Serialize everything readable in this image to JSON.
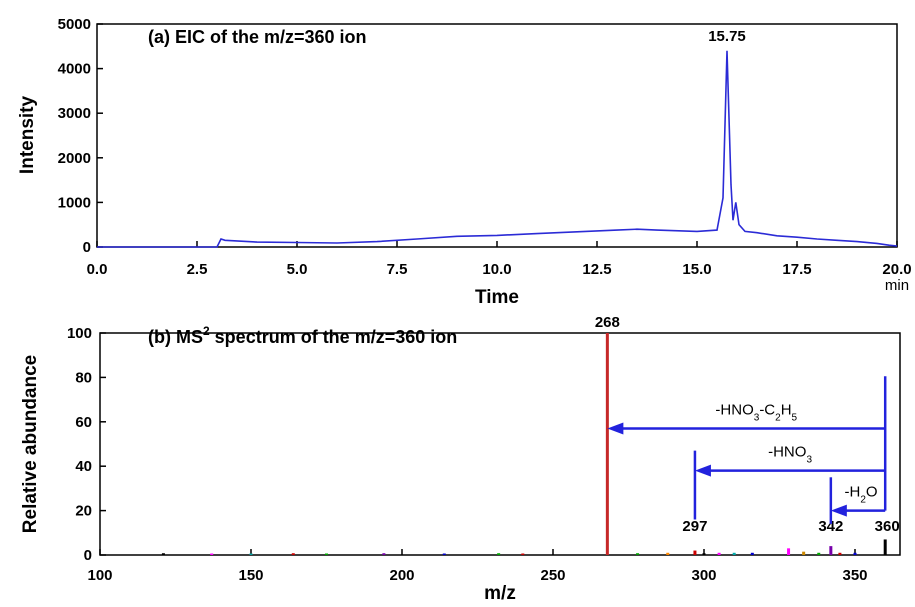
{
  "chart_data": [
    {
      "panel": "a",
      "type": "line",
      "title": "(a) EIC of the m/z=360 ion",
      "xlabel": "Time",
      "x_unit": "min",
      "ylabel": "Intensity",
      "xlim": [
        0,
        20
      ],
      "ylim": [
        0,
        5000
      ],
      "x_ticks": [
        "0.0",
        "2.5",
        "5.0",
        "7.5",
        "10.0",
        "12.5",
        "15.0",
        "17.5",
        "20.0"
      ],
      "y_ticks": [
        "0",
        "1000",
        "2000",
        "3000",
        "4000",
        "5000"
      ],
      "series_color": "#2b2bd6",
      "peak_label": "15.75",
      "x": [
        0.0,
        3.0,
        3.1,
        3.2,
        4.0,
        5.0,
        6.0,
        7.0,
        8.0,
        9.0,
        10.0,
        11.0,
        12.0,
        13.0,
        13.5,
        14.0,
        15.0,
        15.5,
        15.65,
        15.75,
        15.85,
        15.9,
        15.97,
        16.05,
        16.2,
        16.5,
        17.0,
        17.5,
        18.0,
        18.5,
        19.0,
        19.5,
        19.8,
        20.0
      ],
      "y": [
        0,
        0,
        180,
        150,
        110,
        100,
        90,
        120,
        180,
        240,
        260,
        300,
        340,
        380,
        400,
        380,
        350,
        380,
        1100,
        4400,
        1400,
        600,
        1000,
        500,
        350,
        320,
        250,
        220,
        180,
        150,
        120,
        80,
        40,
        20
      ]
    },
    {
      "panel": "b",
      "type": "bar",
      "title_main": "(b) MS",
      "title_sup": "2",
      "title_rest": " spectrum of the m/z=360 ion",
      "xlabel": "m/z",
      "ylabel": "Relative abundance",
      "xlim": [
        100,
        365
      ],
      "ylim": [
        0,
        100
      ],
      "x_ticks": [
        "100",
        "150",
        "200",
        "250",
        "300",
        "350"
      ],
      "y_ticks": [
        "0",
        "20",
        "40",
        "60",
        "80",
        "100"
      ],
      "peaks": [
        {
          "mz": 121,
          "value": 0.8,
          "color": "#000000"
        },
        {
          "mz": 137,
          "value": 0.6,
          "color": "#ff00ff"
        },
        {
          "mz": 150,
          "value": 0.5,
          "color": "#00a0a0"
        },
        {
          "mz": 164,
          "value": 0.8,
          "color": "#cc0000"
        },
        {
          "mz": 175,
          "value": 0.6,
          "color": "#00aa00"
        },
        {
          "mz": 194,
          "value": 0.8,
          "color": "#7700aa"
        },
        {
          "mz": 214,
          "value": 0.5,
          "color": "#0000cc"
        },
        {
          "mz": 232,
          "value": 0.8,
          "color": "#00aa00"
        },
        {
          "mz": 240,
          "value": 0.6,
          "color": "#cc0000"
        },
        {
          "mz": 268,
          "value": 100,
          "color": "#c62828",
          "label": "268"
        },
        {
          "mz": 278,
          "value": 0.8,
          "color": "#00a000"
        },
        {
          "mz": 288,
          "value": 1.0,
          "color": "#ff8800"
        },
        {
          "mz": 297,
          "value": 2.0,
          "color": "#cc0000",
          "label": "297"
        },
        {
          "mz": 300,
          "value": 0.8,
          "color": "#000000"
        },
        {
          "mz": 305,
          "value": 1.0,
          "color": "#ff00ff"
        },
        {
          "mz": 310,
          "value": 1.0,
          "color": "#00aaaa"
        },
        {
          "mz": 316,
          "value": 1.0,
          "color": "#0000cc"
        },
        {
          "mz": 328,
          "value": 3.0,
          "color": "#ff00ff"
        },
        {
          "mz": 333,
          "value": 1.5,
          "color": "#cc8800"
        },
        {
          "mz": 338,
          "value": 1.0,
          "color": "#00aa00"
        },
        {
          "mz": 342,
          "value": 4.0,
          "color": "#7700aa",
          "label": "342"
        },
        {
          "mz": 345,
          "value": 1.0,
          "color": "#cc0000"
        },
        {
          "mz": 350,
          "value": 1.0,
          "color": "#0000cc"
        },
        {
          "mz": 360,
          "value": 7.0,
          "color": "#000000",
          "label": "360"
        }
      ],
      "arrow_color": "#2222dd",
      "losses": [
        {
          "label_main": "-HNO",
          "sub1": "3",
          "mid": "-C",
          "sub2": "2",
          "tail": "H",
          "sub3": "5",
          "from_mz": 360,
          "to_mz": 268,
          "y": 57
        },
        {
          "label_main": "-HNO",
          "sub1": "3",
          "from_mz": 360,
          "to_mz": 297,
          "y": 38
        },
        {
          "label_main": "-H",
          "sub1": "2",
          "tail": "O",
          "from_mz": 360,
          "to_mz": 342,
          "y": 20
        }
      ]
    }
  ]
}
